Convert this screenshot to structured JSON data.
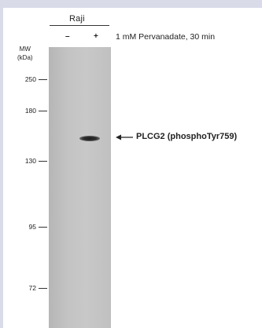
{
  "sample": {
    "name": "Raji"
  },
  "lanes": [
    {
      "sign": "–"
    },
    {
      "sign": "+"
    }
  ],
  "treatment": "1 mM Pervanadate, 30 min",
  "mw": {
    "title_line1": "MW",
    "title_line2": "(kDa)",
    "markers": [
      "250",
      "180",
      "130",
      "95",
      "72"
    ]
  },
  "band": {
    "label": "PLCG2 (phosphoTyr759)",
    "arrow_icon": "left-arrow-icon"
  }
}
